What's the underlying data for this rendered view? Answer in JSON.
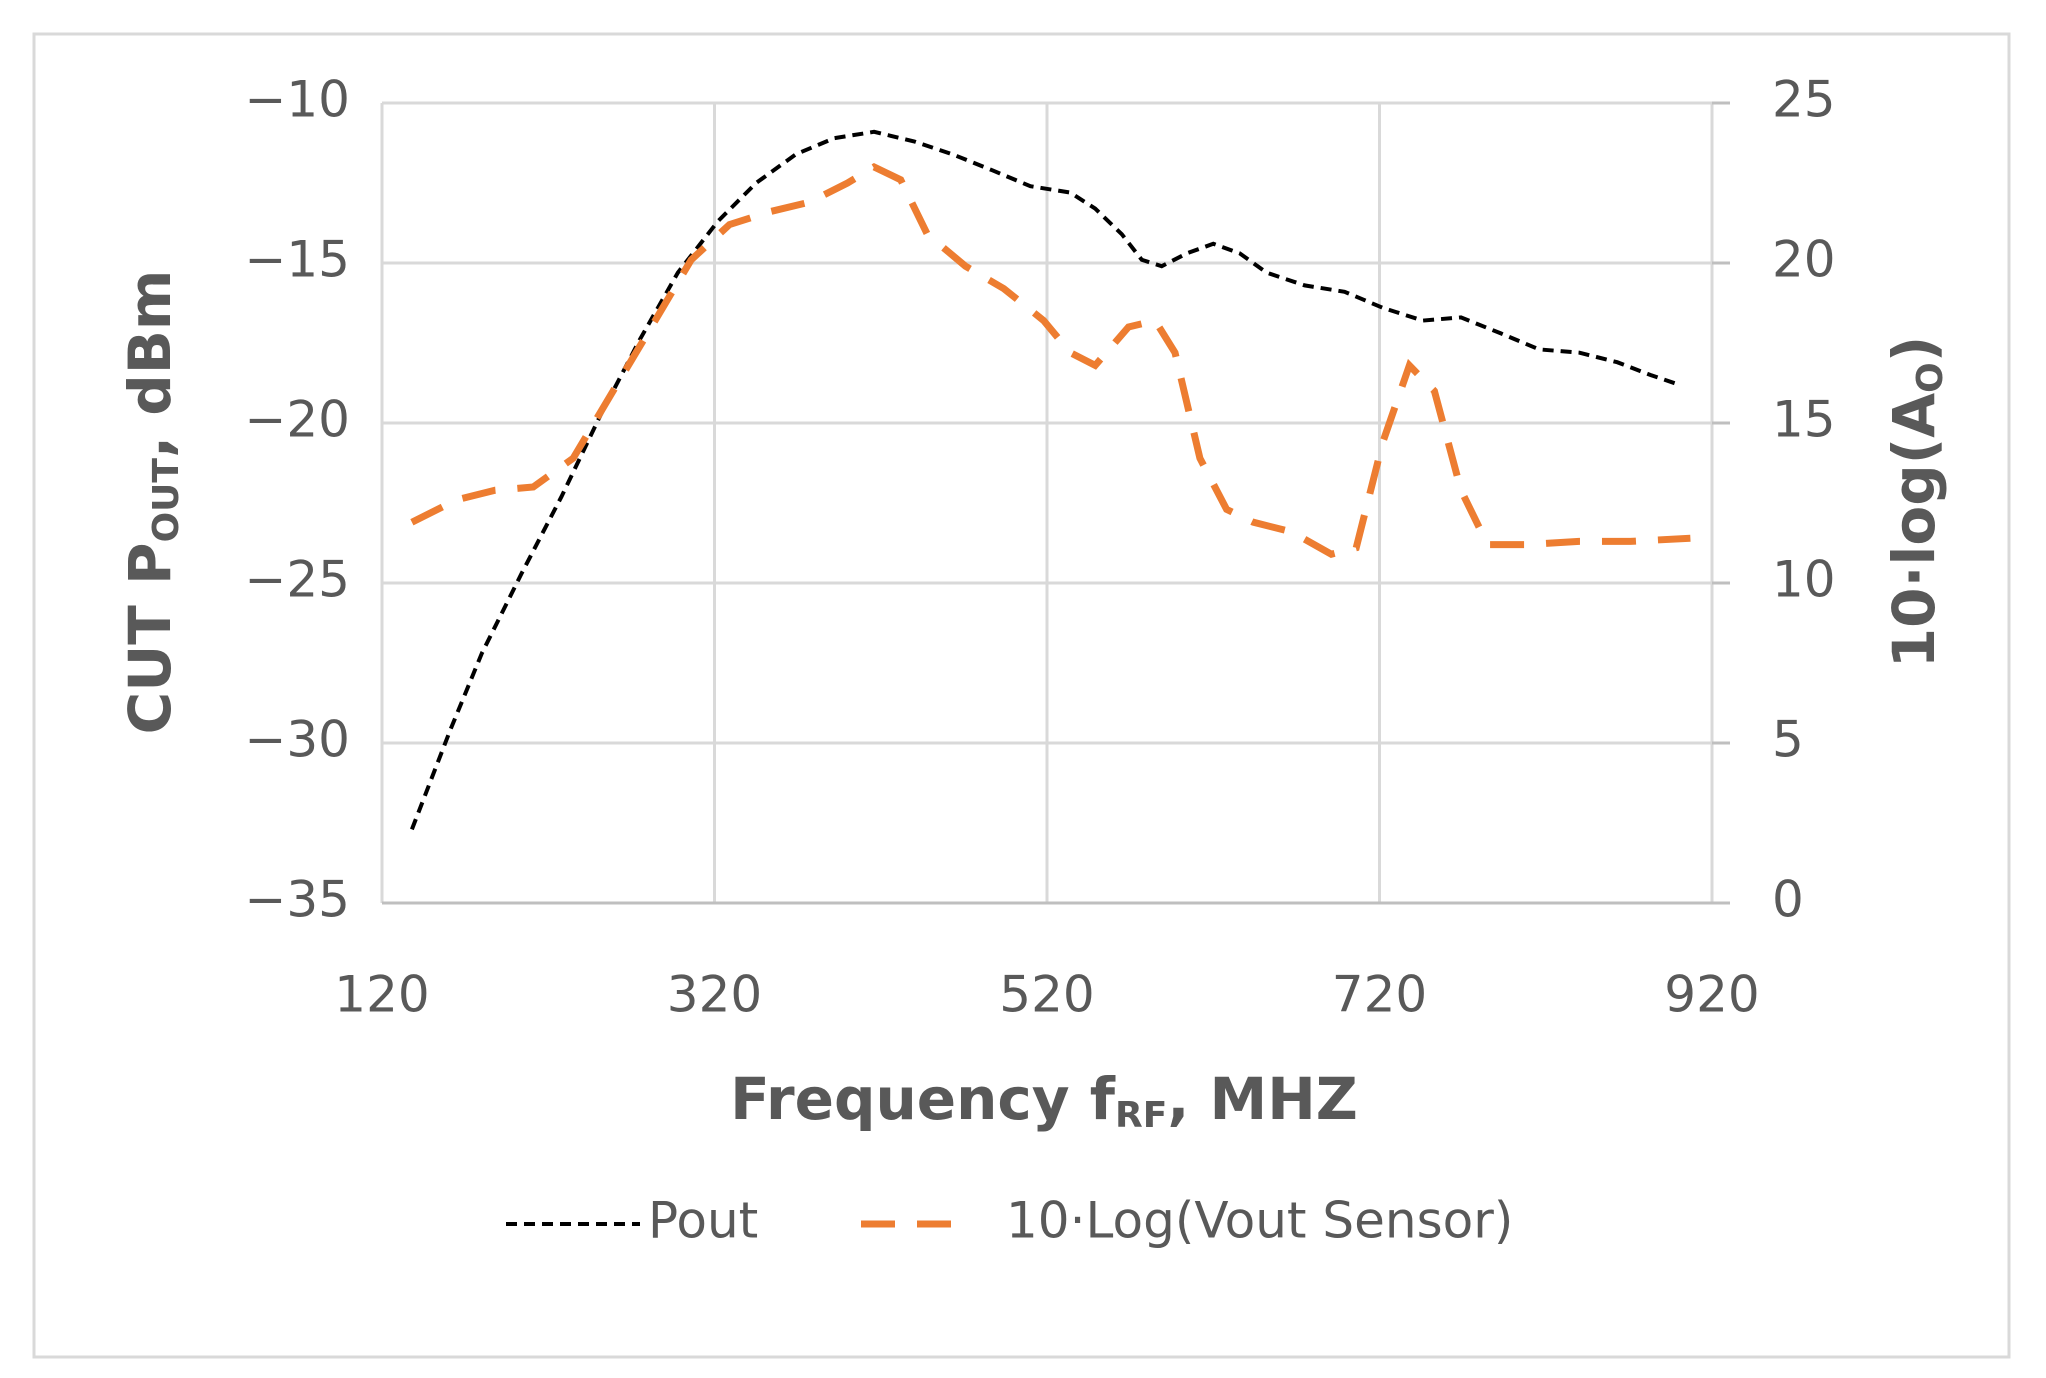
{
  "chart_data": {
    "type": "line",
    "xlabel_parts": [
      "Frequency f",
      "RF",
      ", MHZ"
    ],
    "ylabel_parts": [
      "CUT P",
      "OUT",
      ", dBm"
    ],
    "y2label_parts": [
      "10·log(A",
      "O",
      ")"
    ],
    "xlim": [
      120,
      920
    ],
    "xticks": [
      120,
      320,
      520,
      720,
      920
    ],
    "ylim": [
      -35,
      -10
    ],
    "yticks": [
      {
        "value": -35,
        "label": "−35"
      },
      {
        "value": -30,
        "label": "−30"
      },
      {
        "value": -25,
        "label": "−25"
      },
      {
        "value": -20,
        "label": "−20"
      },
      {
        "value": -15,
        "label": "−15"
      },
      {
        "value": -10,
        "label": "−10"
      }
    ],
    "y2lim": [
      0,
      25
    ],
    "y2ticks": [
      0,
      5,
      10,
      15,
      20,
      25
    ],
    "grid": true,
    "legend": "bottom",
    "series": [
      {
        "name": "Pout",
        "color": "#000000",
        "x": [
          138,
          161,
          180,
          204,
          228,
          251,
          275,
          298,
          322,
          345,
          369,
          392,
          416,
          440,
          463,
          487,
          510,
          534,
          549,
          565,
          577,
          589,
          604,
          620,
          636,
          652,
          675,
          699,
          722,
          746,
          769,
          793,
          816,
          840,
          863,
          883,
          900
        ],
        "values": [
          -32.7,
          -29.6,
          -27.2,
          -24.7,
          -22.3,
          -19.8,
          -17.4,
          -15.3,
          -13.7,
          -12.5,
          -11.6,
          -11.1,
          -10.9,
          -11.2,
          -11.6,
          -12.1,
          -12.6,
          -12.8,
          -13.3,
          -14.1,
          -14.9,
          -15.1,
          -14.7,
          -14.4,
          -14.7,
          -15.3,
          -15.7,
          -15.9,
          -16.4,
          -16.8,
          -16.7,
          -17.2,
          -17.7,
          -17.8,
          -18.1,
          -18.5,
          -18.8
        ]
      },
      {
        "name": "10·Log(Vout Sensor)",
        "color": "#ED7D31",
        "axis": "y2",
        "x": [
          138,
          165,
          188,
          211,
          235,
          259,
          282,
          306,
          329,
          353,
          377,
          400,
          416,
          432,
          448,
          471,
          494,
          518,
          534,
          549,
          569,
          585,
          597,
          612,
          628,
          644,
          667,
          691,
          706,
          722,
          738,
          753,
          769,
          785,
          808,
          840,
          871,
          907
        ],
        "values": [
          11.9,
          12.6,
          12.9,
          13.0,
          13.9,
          16.0,
          18.0,
          20.1,
          21.2,
          21.6,
          21.9,
          22.5,
          23.0,
          22.6,
          20.9,
          19.9,
          19.2,
          18.2,
          17.2,
          16.8,
          18.0,
          18.2,
          17.2,
          13.9,
          12.3,
          11.9,
          11.6,
          10.9,
          11.1,
          14.4,
          16.8,
          16.0,
          12.9,
          11.2,
          11.2,
          11.3,
          11.3,
          11.4
        ]
      }
    ]
  }
}
